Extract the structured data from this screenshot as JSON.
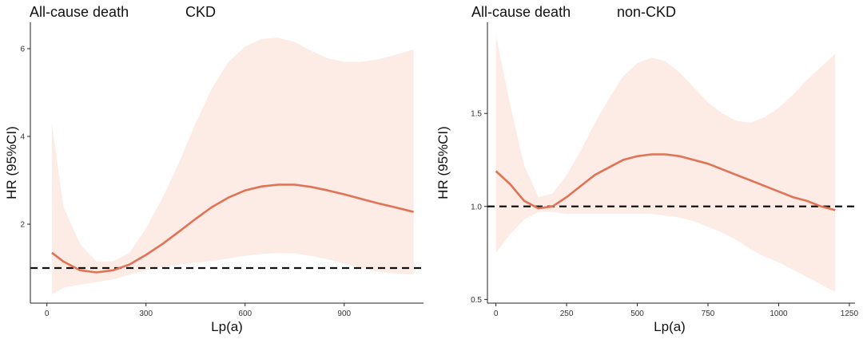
{
  "chart_data": [
    {
      "type": "line",
      "outcome_label": "All-cause death",
      "title": "CKD",
      "xlabel": "Lp(a)",
      "ylabel": "HR (95%CI)",
      "xlim": [
        -50,
        1140
      ],
      "ylim": [
        0.2,
        6.6
      ],
      "xticks": [
        0,
        300,
        600,
        900
      ],
      "yticks": [
        2,
        4,
        6
      ],
      "reference_line_y": 1,
      "series": [
        {
          "x": [
            15,
            50,
            100,
            150,
            200,
            250,
            300,
            350,
            400,
            450,
            500,
            550,
            600,
            650,
            700,
            750,
            800,
            850,
            900,
            950,
            1000,
            1050,
            1110
          ],
          "y": [
            1.35,
            1.15,
            0.95,
            0.9,
            0.95,
            1.08,
            1.3,
            1.55,
            1.83,
            2.12,
            2.39,
            2.61,
            2.77,
            2.86,
            2.9,
            2.9,
            2.85,
            2.77,
            2.68,
            2.58,
            2.48,
            2.39,
            2.28
          ],
          "lower": [
            0.4,
            0.55,
            0.62,
            0.68,
            0.74,
            0.85,
            0.95,
            1.02,
            1.08,
            1.12,
            1.16,
            1.22,
            1.28,
            1.32,
            1.34,
            1.33,
            1.28,
            1.2,
            1.1,
            1.0,
            0.92,
            0.88,
            0.85
          ],
          "upper": [
            4.3,
            2.4,
            1.55,
            1.15,
            1.15,
            1.35,
            1.9,
            2.6,
            3.4,
            4.3,
            5.1,
            5.7,
            6.05,
            6.22,
            6.25,
            6.15,
            5.95,
            5.78,
            5.7,
            5.7,
            5.75,
            5.85,
            5.98
          ]
        }
      ]
    },
    {
      "type": "line",
      "outcome_label": "All-cause death",
      "title": "non-CKD",
      "xlabel": "Lp(a)",
      "ylabel": "HR (95%CI)",
      "xlim": [
        -30,
        1270
      ],
      "ylim": [
        0.48,
        1.99
      ],
      "xticks": [
        0,
        250,
        500,
        750,
        1000,
        1250
      ],
      "yticks": [
        0.5,
        1.0,
        1.5
      ],
      "reference_line_y": 1,
      "series": [
        {
          "x": [
            0,
            50,
            100,
            150,
            200,
            250,
            300,
            350,
            400,
            450,
            500,
            550,
            600,
            650,
            700,
            750,
            800,
            850,
            900,
            950,
            1000,
            1050,
            1100,
            1150,
            1200
          ],
          "y": [
            1.19,
            1.12,
            1.03,
            0.99,
            1.0,
            1.05,
            1.11,
            1.17,
            1.21,
            1.25,
            1.27,
            1.28,
            1.28,
            1.27,
            1.25,
            1.23,
            1.2,
            1.17,
            1.14,
            1.11,
            1.08,
            1.05,
            1.03,
            1.0,
            0.98
          ],
          "lower": [
            0.75,
            0.85,
            0.93,
            0.97,
            0.97,
            0.96,
            0.96,
            0.96,
            0.96,
            0.96,
            0.96,
            0.96,
            0.95,
            0.94,
            0.92,
            0.89,
            0.86,
            0.82,
            0.77,
            0.73,
            0.7,
            0.66,
            0.62,
            0.58,
            0.54
          ],
          "upper": [
            1.92,
            1.55,
            1.22,
            1.05,
            1.07,
            1.17,
            1.3,
            1.45,
            1.58,
            1.7,
            1.77,
            1.8,
            1.78,
            1.72,
            1.64,
            1.56,
            1.5,
            1.46,
            1.45,
            1.48,
            1.53,
            1.6,
            1.68,
            1.75,
            1.82
          ]
        }
      ]
    }
  ]
}
